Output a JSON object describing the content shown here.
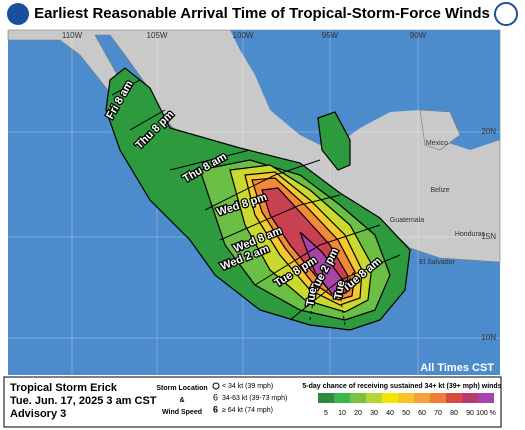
{
  "header": {
    "title": "Earliest Reasonable Arrival Time of Tropical-Storm-Force Winds"
  },
  "map": {
    "longitude_labels": [
      "110W",
      "105W",
      "100W",
      "95W",
      "90W"
    ],
    "latitude_labels": [
      "20N",
      "15N",
      "10N"
    ],
    "country_labels": [
      "Mexico",
      "Belize",
      "Guatemala",
      "Honduras",
      "El Salvador"
    ],
    "arrival_labels": [
      "Fri 8 am",
      "Thu 8 pm",
      "Thu 8 am",
      "Wed 8 pm",
      "Wed 8 am",
      "Wed 2 am",
      "Tue 8 pm",
      "Tue 2 pm",
      "Tue 8 am",
      "Tue",
      "Tue"
    ],
    "note": "All Times CST"
  },
  "footer": {
    "storm_name": "Tropical Storm Erick",
    "issued": "Tue. Jun. 17, 2025  3 am CST",
    "advisory": "Advisory 3",
    "legend": {
      "line1": "Storm Location",
      "line2": "&",
      "line3": "Wind Speed",
      "weak": "< 34 kt (39 mph)",
      "medium": "34-63 kt (39-73 mph)",
      "strong": "≥ 64 kt (74 mph)"
    },
    "probability_title": "5-day chance of receiving sustained 34+ kt (39+ mph) winds",
    "probability_scale": [
      "5",
      "10",
      "20",
      "30",
      "40",
      "50",
      "60",
      "70",
      "80",
      "90",
      "100 %"
    ]
  }
}
